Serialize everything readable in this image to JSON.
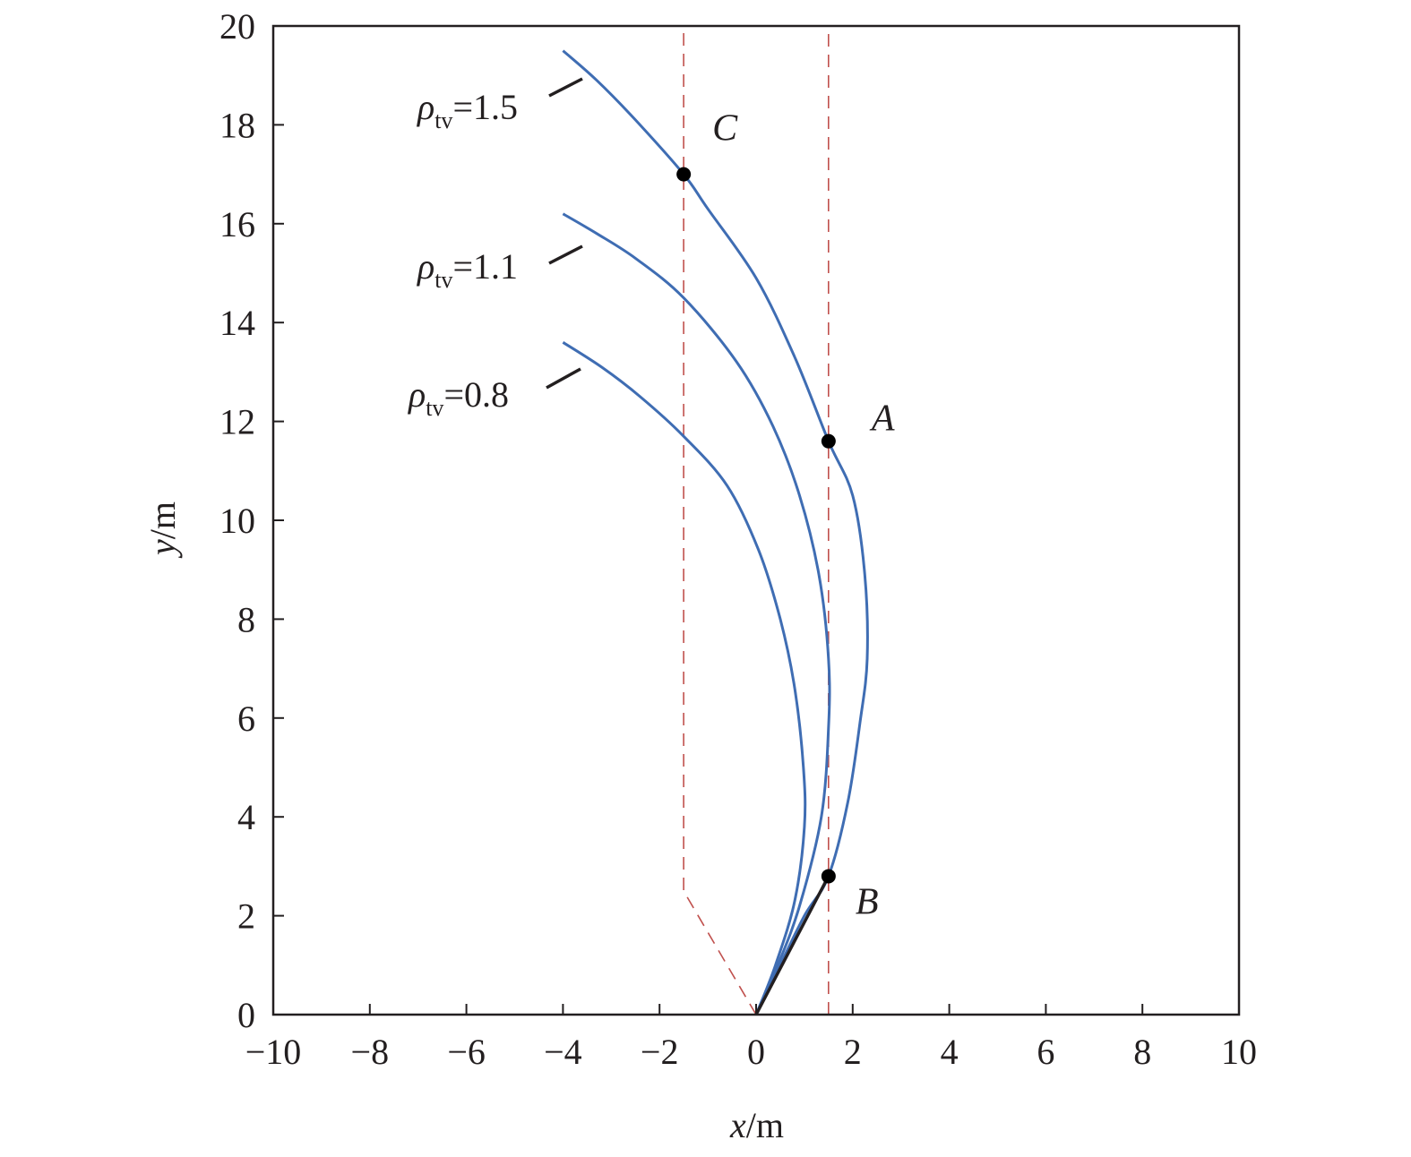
{
  "chart_data": {
    "type": "line",
    "xlabel": {
      "var": "x",
      "unit": "/m"
    },
    "ylabel": {
      "var": "y",
      "unit": "/m"
    },
    "xlim": [
      -10,
      10
    ],
    "ylim": [
      0,
      20
    ],
    "xticks": [
      -10,
      -8,
      -6,
      -4,
      -2,
      0,
      2,
      4,
      6,
      8,
      10
    ],
    "yticks": [
      0,
      2,
      4,
      6,
      8,
      10,
      12,
      14,
      16,
      18,
      20
    ],
    "xtick_labels": [
      "−10",
      "−8",
      "−6",
      "−4",
      "−2",
      "0",
      "2",
      "4",
      "6",
      "8",
      "10"
    ],
    "ytick_labels": [
      "0",
      "2",
      "4",
      "6",
      "8",
      "10",
      "12",
      "14",
      "16",
      "18",
      "20"
    ],
    "grid": false,
    "colors": {
      "series": "#3f6db3",
      "guide": "#c0504d",
      "axis": "#231f20",
      "point": "#000000"
    },
    "series": [
      {
        "label_symbol": "ρ",
        "label_sub": "tv",
        "label_value": "=1.5",
        "points": [
          [
            0,
            0
          ],
          [
            0.4,
            0.8
          ],
          [
            1.0,
            2.0
          ],
          [
            1.5,
            2.8
          ],
          [
            1.9,
            4.3
          ],
          [
            2.15,
            5.9
          ],
          [
            2.3,
            7.2
          ],
          [
            2.25,
            8.9
          ],
          [
            2.0,
            10.5
          ],
          [
            1.5,
            11.6
          ],
          [
            0.8,
            13.3
          ],
          [
            0,
            14.9
          ],
          [
            -1.0,
            16.3
          ],
          [
            -1.5,
            17.0
          ],
          [
            -2.5,
            18.1
          ],
          [
            -3.3,
            18.9
          ],
          [
            -4.0,
            19.5
          ]
        ]
      },
      {
        "label_symbol": "ρ",
        "label_sub": "tv",
        "label_value": "=1.1",
        "points": [
          [
            0,
            0
          ],
          [
            0.45,
            1.0
          ],
          [
            0.9,
            2.2
          ],
          [
            1.35,
            4.0
          ],
          [
            1.5,
            5.8
          ],
          [
            1.5,
            7.2
          ],
          [
            1.3,
            8.9
          ],
          [
            0.9,
            10.5
          ],
          [
            0.35,
            11.9
          ],
          [
            -0.4,
            13.2
          ],
          [
            -1.5,
            14.5
          ],
          [
            -2.5,
            15.3
          ],
          [
            -3.3,
            15.8
          ],
          [
            -4.0,
            16.2
          ]
        ]
      },
      {
        "label_symbol": "ρ",
        "label_sub": "tv",
        "label_value": "=0.8",
        "points": [
          [
            0,
            0
          ],
          [
            0.4,
            1.0
          ],
          [
            0.8,
            2.3
          ],
          [
            1.0,
            3.8
          ],
          [
            0.98,
            5.0
          ],
          [
            0.8,
            6.6
          ],
          [
            0.5,
            8.0
          ],
          [
            0.05,
            9.4
          ],
          [
            -0.6,
            10.7
          ],
          [
            -1.5,
            11.7
          ],
          [
            -2.4,
            12.5
          ],
          [
            -3.2,
            13.1
          ],
          [
            -4.0,
            13.6
          ]
        ]
      }
    ],
    "guides": [
      {
        "points": [
          [
            1.5,
            0
          ],
          [
            1.5,
            20
          ]
        ]
      },
      {
        "points": [
          [
            0,
            0
          ],
          [
            -1.5,
            2.5
          ],
          [
            -1.5,
            20
          ]
        ]
      }
    ],
    "tangent": {
      "points": [
        [
          0,
          0
        ],
        [
          1.5,
          2.8
        ]
      ]
    },
    "marked_points": [
      {
        "label": "C",
        "x": -1.5,
        "y": 17.0
      },
      {
        "label": "A",
        "x": 1.5,
        "y": 11.6
      },
      {
        "label": "B",
        "x": 1.5,
        "y": 2.8
      }
    ]
  }
}
